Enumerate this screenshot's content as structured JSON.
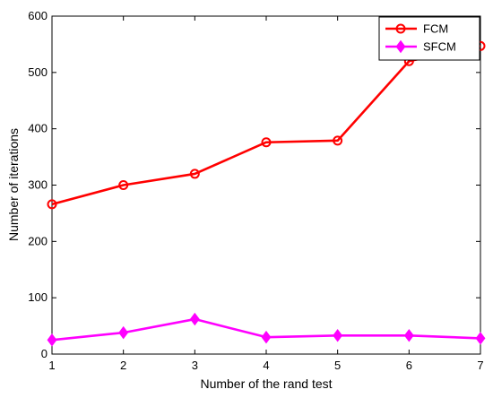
{
  "chart_data": {
    "type": "line",
    "title": "",
    "xlabel": "Number of the rand test",
    "ylabel": "Number of iterations",
    "x": [
      1,
      2,
      3,
      4,
      5,
      6,
      7
    ],
    "xlim": [
      1,
      7
    ],
    "ylim": [
      0,
      600
    ],
    "xticks": [
      "1",
      "2",
      "3",
      "4",
      "5",
      "6",
      "7"
    ],
    "yticks": [
      "0",
      "100",
      "200",
      "300",
      "400",
      "500",
      "600"
    ],
    "grid": false,
    "legend_position": "top-right",
    "series": [
      {
        "name": "FCM",
        "values": [
          266,
          300,
          320,
          376,
          379,
          520,
          547
        ],
        "color": "#ff0000",
        "marker": "circle"
      },
      {
        "name": "SFCM",
        "values": [
          25,
          38,
          62,
          30,
          33,
          33,
          28
        ],
        "color": "#ff00ff",
        "marker": "diamond"
      }
    ]
  }
}
